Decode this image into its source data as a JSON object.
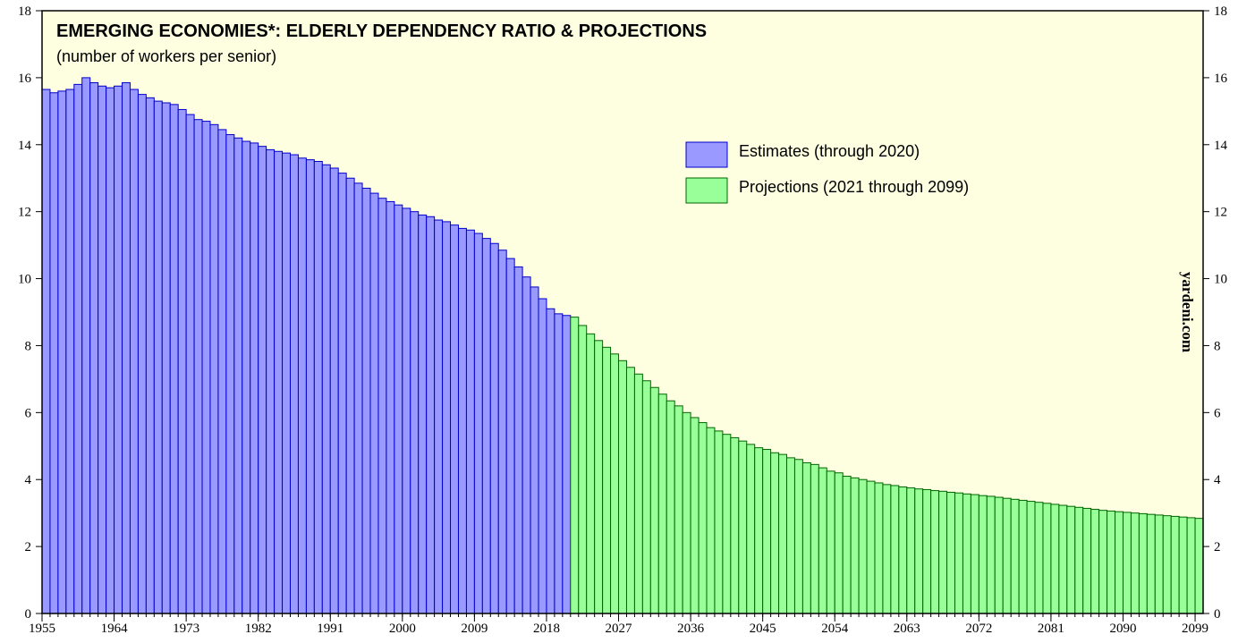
{
  "chart_data": {
    "type": "bar",
    "title": "EMERGING ECONOMIES*: ELDERLY DEPENDENCY RATIO & PROJECTIONS",
    "subtitle": "(number of workers per senior)",
    "annotation": "yardeni.com",
    "xlim": [
      1955,
      2100
    ],
    "ylim": [
      0,
      18
    ],
    "yticks": [
      0,
      2,
      4,
      6,
      8,
      10,
      12,
      14,
      16,
      18
    ],
    "xticks": [
      1955,
      1964,
      1973,
      1982,
      1991,
      2000,
      2009,
      2018,
      2027,
      2036,
      2045,
      2054,
      2063,
      2072,
      2081,
      2090,
      2099
    ],
    "series": [
      {
        "name": "Estimates (through 2020)",
        "color": "#9999ff",
        "edge": "#0000cc",
        "x": [
          1955,
          1956,
          1957,
          1958,
          1959,
          1960,
          1961,
          1962,
          1963,
          1964,
          1965,
          1966,
          1967,
          1968,
          1969,
          1970,
          1971,
          1972,
          1973,
          1974,
          1975,
          1976,
          1977,
          1978,
          1979,
          1980,
          1981,
          1982,
          1983,
          1984,
          1985,
          1986,
          1987,
          1988,
          1989,
          1990,
          1991,
          1992,
          1993,
          1994,
          1995,
          1996,
          1997,
          1998,
          1999,
          2000,
          2001,
          2002,
          2003,
          2004,
          2005,
          2006,
          2007,
          2008,
          2009,
          2010,
          2011,
          2012,
          2013,
          2014,
          2015,
          2016,
          2017,
          2018,
          2019,
          2020
        ],
        "values": [
          15.65,
          15.55,
          15.6,
          15.65,
          15.8,
          16.0,
          15.85,
          15.75,
          15.7,
          15.75,
          15.85,
          15.65,
          15.5,
          15.4,
          15.3,
          15.25,
          15.2,
          15.05,
          14.9,
          14.75,
          14.7,
          14.6,
          14.45,
          14.3,
          14.2,
          14.1,
          14.05,
          13.95,
          13.85,
          13.8,
          13.75,
          13.7,
          13.6,
          13.55,
          13.5,
          13.4,
          13.3,
          13.15,
          13.0,
          12.85,
          12.7,
          12.55,
          12.4,
          12.3,
          12.2,
          12.1,
          12.0,
          11.9,
          11.85,
          11.75,
          11.7,
          11.6,
          11.5,
          11.45,
          11.35,
          11.2,
          11.05,
          10.85,
          10.6,
          10.35,
          10.05,
          9.75,
          9.4,
          9.1,
          8.95,
          8.9
        ]
      },
      {
        "name": "Projections (2021 through 2099)",
        "color": "#99ff99",
        "edge": "#006600",
        "x": [
          2021,
          2022,
          2023,
          2024,
          2025,
          2026,
          2027,
          2028,
          2029,
          2030,
          2031,
          2032,
          2033,
          2034,
          2035,
          2036,
          2037,
          2038,
          2039,
          2040,
          2041,
          2042,
          2043,
          2044,
          2045,
          2046,
          2047,
          2048,
          2049,
          2050,
          2051,
          2052,
          2053,
          2054,
          2055,
          2056,
          2057,
          2058,
          2059,
          2060,
          2061,
          2062,
          2063,
          2064,
          2065,
          2066,
          2067,
          2068,
          2069,
          2070,
          2071,
          2072,
          2073,
          2074,
          2075,
          2076,
          2077,
          2078,
          2079,
          2080,
          2081,
          2082,
          2083,
          2084,
          2085,
          2086,
          2087,
          2088,
          2089,
          2090,
          2091,
          2092,
          2093,
          2094,
          2095,
          2096,
          2097,
          2098,
          2099
        ],
        "values": [
          8.85,
          8.6,
          8.35,
          8.15,
          7.95,
          7.75,
          7.55,
          7.35,
          7.15,
          6.95,
          6.75,
          6.55,
          6.35,
          6.2,
          6.0,
          5.85,
          5.7,
          5.55,
          5.45,
          5.35,
          5.25,
          5.15,
          5.05,
          4.95,
          4.9,
          4.8,
          4.75,
          4.65,
          4.6,
          4.5,
          4.45,
          4.35,
          4.25,
          4.2,
          4.1,
          4.05,
          4.0,
          3.95,
          3.9,
          3.85,
          3.82,
          3.78,
          3.75,
          3.72,
          3.7,
          3.67,
          3.65,
          3.62,
          3.6,
          3.57,
          3.55,
          3.52,
          3.5,
          3.47,
          3.44,
          3.41,
          3.38,
          3.35,
          3.32,
          3.29,
          3.26,
          3.23,
          3.2,
          3.17,
          3.14,
          3.11,
          3.08,
          3.06,
          3.04,
          3.02,
          3.0,
          2.98,
          2.96,
          2.94,
          2.92,
          2.9,
          2.88,
          2.86,
          2.84
        ]
      }
    ]
  }
}
